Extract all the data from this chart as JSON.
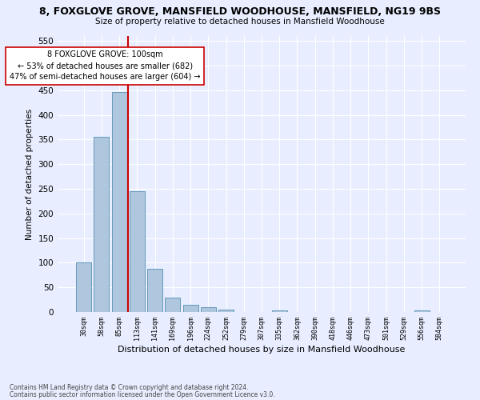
{
  "title1": "8, FOXGLOVE GROVE, MANSFIELD WOODHOUSE, MANSFIELD, NG19 9BS",
  "title2": "Size of property relative to detached houses in Mansfield Woodhouse",
  "xlabel": "Distribution of detached houses by size in Mansfield Woodhouse",
  "ylabel": "Number of detached properties",
  "footer1": "Contains HM Land Registry data © Crown copyright and database right 2024.",
  "footer2": "Contains public sector information licensed under the Open Government Licence v3.0.",
  "bar_labels": [
    "30sqm",
    "58sqm",
    "85sqm",
    "113sqm",
    "141sqm",
    "169sqm",
    "196sqm",
    "224sqm",
    "252sqm",
    "279sqm",
    "307sqm",
    "335sqm",
    "362sqm",
    "390sqm",
    "418sqm",
    "446sqm",
    "473sqm",
    "501sqm",
    "529sqm",
    "556sqm",
    "584sqm"
  ],
  "bar_values": [
    100,
    355,
    447,
    245,
    88,
    30,
    14,
    9,
    5,
    0,
    0,
    4,
    0,
    0,
    0,
    0,
    0,
    0,
    0,
    4,
    0
  ],
  "bar_color": "#aec6de",
  "bar_edge_color": "#6699bb",
  "property_line_color": "#cc0000",
  "annotation_text": "8 FOXGLOVE GROVE: 100sqm\n← 53% of detached houses are smaller (682)\n47% of semi-detached houses are larger (604) →",
  "annotation_box_color": "#ffffff",
  "annotation_box_edge_color": "#cc0000",
  "ylim": [
    0,
    560
  ],
  "yticks": [
    0,
    50,
    100,
    150,
    200,
    250,
    300,
    350,
    400,
    450,
    500,
    550
  ],
  "bg_color": "#e8eeff",
  "plot_bg_color": "#e8eeff"
}
